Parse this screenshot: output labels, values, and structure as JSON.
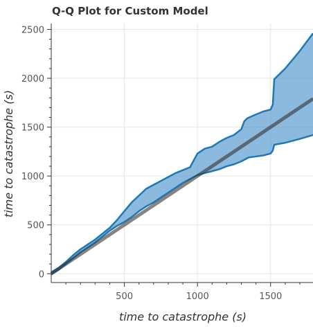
{
  "chart_data": {
    "type": "line",
    "title": "Q-Q Plot for Custom Model",
    "xlabel": "time to catastrophe (s)",
    "ylabel": "time to catastrophe (s)",
    "xlim": [
      0,
      1790
    ],
    "ylim": [
      -90,
      2560
    ],
    "xticks": [
      500,
      1000,
      1500
    ],
    "yticks": [
      0,
      500,
      1000,
      1500,
      2000,
      2500
    ],
    "grid": true,
    "colors": {
      "band_fill": "#5b9bd0",
      "band_edge": "#1f77b4",
      "reference_line": "#333333",
      "grid": "#e6e6e6",
      "axis": "#333333"
    },
    "reference_line": {
      "x": [
        0,
        1790
      ],
      "y": [
        0,
        1790
      ]
    },
    "band": {
      "upper": {
        "x": [
          0,
          50,
          100,
          150,
          200,
          250,
          300,
          350,
          400,
          450,
          500,
          550,
          600,
          650,
          700,
          750,
          800,
          850,
          900,
          950,
          960,
          1000,
          1050,
          1100,
          1150,
          1200,
          1250,
          1300,
          1320,
          1340,
          1400,
          1450,
          1500,
          1515,
          1525,
          1600,
          1700,
          1790
        ],
        "y": [
          15,
          60,
          120,
          190,
          250,
          300,
          350,
          410,
          470,
          550,
          640,
          730,
          800,
          870,
          910,
          950,
          990,
          1030,
          1060,
          1090,
          1120,
          1230,
          1280,
          1300,
          1350,
          1390,
          1420,
          1480,
          1560,
          1590,
          1630,
          1660,
          1680,
          1730,
          1990,
          2100,
          2280,
          2460
        ]
      },
      "lower": {
        "x": [
          0,
          50,
          100,
          150,
          200,
          250,
          300,
          350,
          400,
          450,
          500,
          550,
          600,
          650,
          700,
          750,
          800,
          850,
          900,
          950,
          1000,
          1050,
          1100,
          1150,
          1200,
          1250,
          1300,
          1350,
          1400,
          1450,
          1500,
          1515,
          1525,
          1600,
          1700,
          1790
        ],
        "y": [
          -5,
          40,
          100,
          160,
          220,
          270,
          320,
          380,
          440,
          490,
          530,
          580,
          640,
          690,
          730,
          780,
          830,
          880,
          930,
          970,
          1010,
          1030,
          1050,
          1070,
          1100,
          1120,
          1150,
          1190,
          1200,
          1210,
          1230,
          1260,
          1320,
          1340,
          1380,
          1420
        ]
      }
    }
  }
}
